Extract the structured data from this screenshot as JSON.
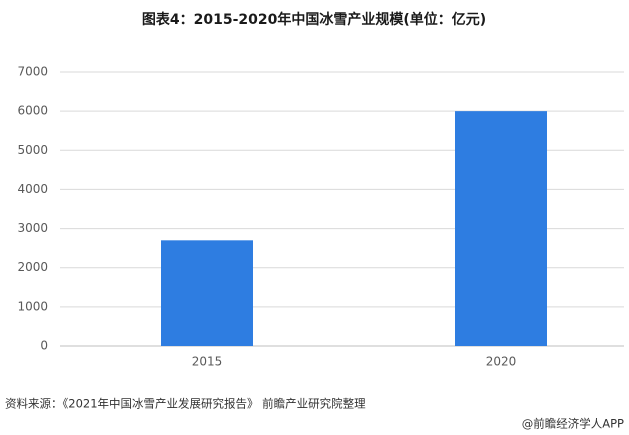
{
  "chart_data": {
    "type": "bar",
    "title": "图表4：2015-2020年中国冰雪产业规模(单位：亿元)",
    "categories": [
      "2015",
      "2020"
    ],
    "values": [
      2700,
      6000
    ],
    "color": "#2e7de1",
    "ylim": [
      0,
      7000
    ],
    "yticks": [
      0,
      1000,
      2000,
      3000,
      4000,
      5000,
      6000,
      7000
    ],
    "grid": true,
    "source": "资料来源：《2021年中国冰雪产业发展研究报告》 前瞻产业研究院整理",
    "credit": "@前瞻经济学人APP"
  }
}
